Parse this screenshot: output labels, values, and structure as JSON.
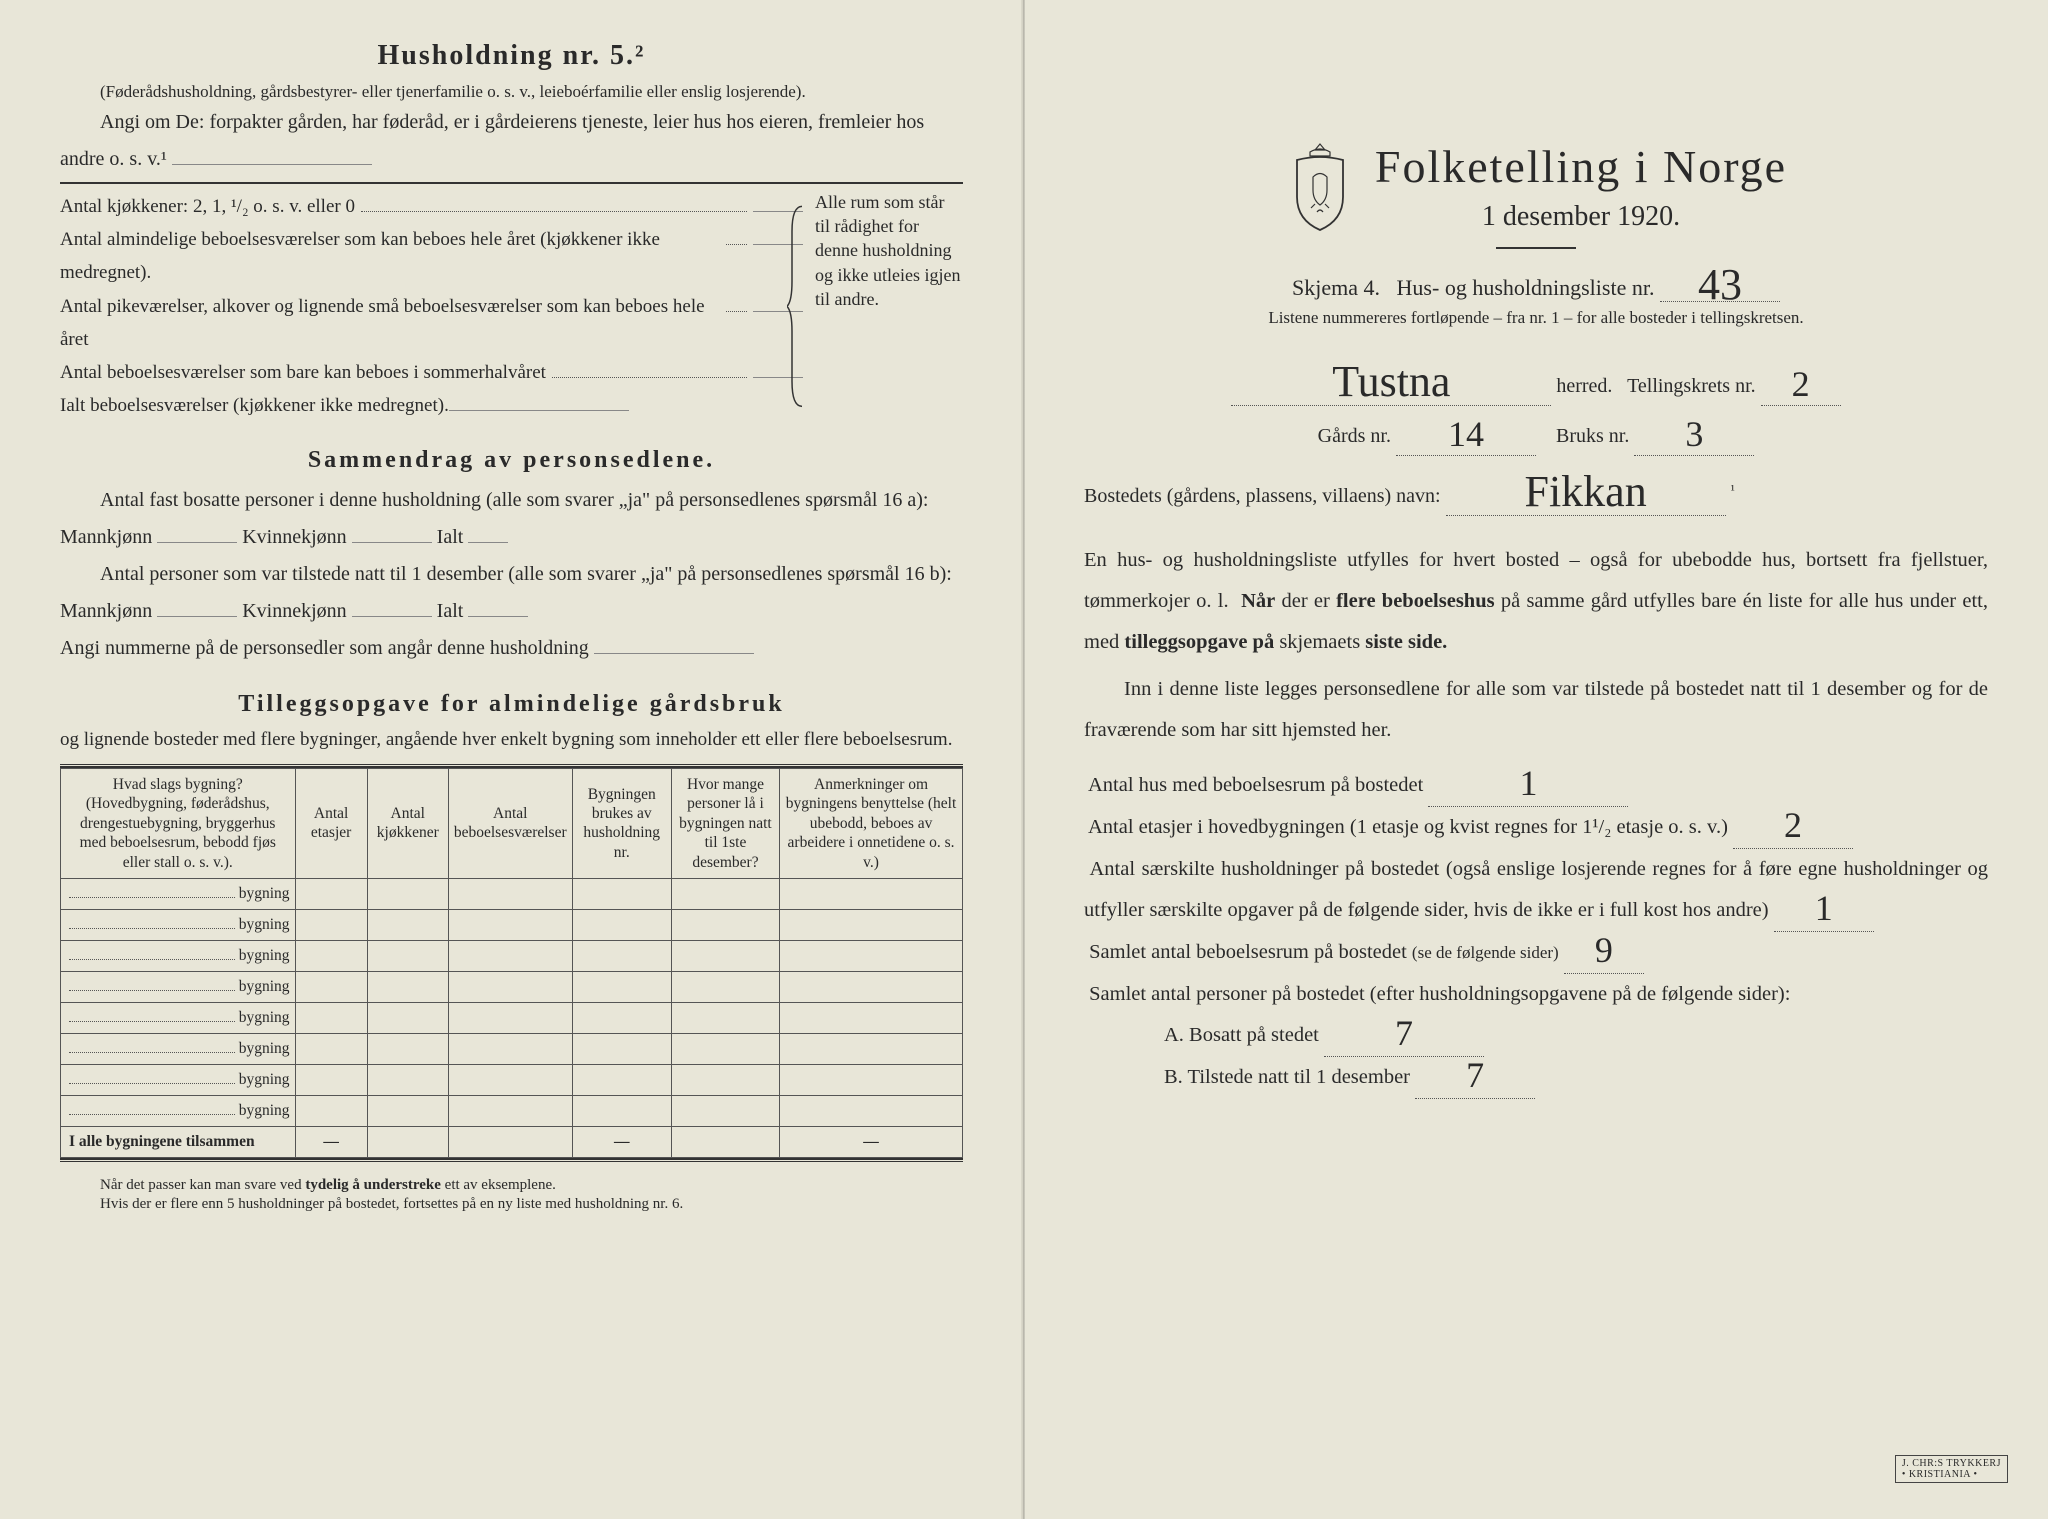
{
  "left": {
    "heading": "Husholdning nr. 5.²",
    "paraA": "(Føderådshusholdning, gårdsbestyrer- eller tjenerfamilie o. s. v., leieboérfamilie eller enslig losjerende).",
    "paraB_lead": "Angi om De:",
    "paraB_rest": "forpakter gården, har føderåd, er i gårdeierens tjeneste, leier hus hos eieren, fremleier hos andre o. s. v.¹",
    "kitchens_label": "Antal kjøkkener: 2, 1, ¹/₂ o. s. v. eller 0",
    "rooms": [
      "Antal almindelige beboelsesværelser som kan beboes hele året (kjøkkener ikke medregnet).",
      "Antal pikeværelser, alkover og lignende små beboelsesværelser som kan beboes hele året",
      "Antal beboelsesværelser som bare kan beboes i sommerhalvåret",
      "Ialt beboelsesværelser (kjøkkener ikke medregnet)."
    ],
    "bracket_text": "Alle rum som står til rådighet for denne husholdning og ikke utleies igjen til andre.",
    "summary_heading": "Sammendrag av personsedlene.",
    "summary_p1a": "Antal fast bosatte personer i denne husholdning (alle som svarer „ja\" på personsedlenes spørsmål 16 a): Mannkjønn",
    "summary_kv": "Kvinnekjønn",
    "summary_ialt": "Ialt",
    "summary_p2a": "Antal personer som var tilstede natt til 1 desember (alle som svarer „ja\" på personsedlenes spørsmål 16 b): Mannkjønn",
    "summary_p3": "Angi nummerne på de personsedler som angår denne husholdning",
    "tillegg_heading": "Tilleggsopgave for almindelige gårdsbruk",
    "tillegg_sub": "og lignende bosteder med flere bygninger, angående hver enkelt bygning som inneholder ett eller flere beboelsesrum.",
    "table": {
      "headers": [
        "Hvad slags bygning?\n(Hovedbygning, føderådshus, drengestuebygning, bryggerhus med beboelsesrum, bebodd fjøs eller stall o. s. v.).",
        "Antal etasjer",
        "Antal kjøkkener",
        "Antal beboelsesværelser",
        "Bygningen brukes av husholdning nr.",
        "Hvor mange personer lå i bygningen natt til 1ste desember?",
        "Anmerkninger om bygningens benyttelse (helt ubebodd, beboes av arbeidere i onnetidene o. s. v.)"
      ],
      "row_label": "bygning",
      "row_count": 8,
      "footer_label": "I alle bygningene tilsammen",
      "footer_cells": [
        "—",
        "",
        "",
        "—",
        "",
        "—"
      ]
    },
    "footnote1": "Når det passer kan man svare ved tydelig å understreke ett av eksemplene.",
    "footnote2": "Hvis der er flere enn 5 husholdninger på bostedet, fortsettes på en ny liste med husholdning nr. 6."
  },
  "right": {
    "title": "Folketelling i Norge",
    "date": "1 desember 1920.",
    "schema_a": "Skjema 4.",
    "schema_b": "Hus- og husholdningsliste nr.",
    "list_nr": "43",
    "subnote": "Listene nummereres fortløpende – fra nr. 1 – for alle bosteder i tellingskretsen.",
    "herred_value": "Tustna",
    "herred_label": "herred.",
    "krets_label": "Tellingskrets nr.",
    "krets_value": "2",
    "gard_label": "Gårds nr.",
    "gard_value": "14",
    "bruk_label": "Bruks nr.",
    "bruk_value": "3",
    "bosted_label": "Bostedets (gårdens, plassens, villaens) navn:",
    "bosted_value": "Fikkan",
    "bosted_suffix": "¹",
    "para1": "En hus- og husholdningsliste utfylles for hvert bosted – også for ubebodde hus, bortsett fra fjellstuer, tømmerkojer o. l.  Når der er flere beboelseshus på samme gård utfylles bare én liste for alle hus under ett, med tilleggsopgave på skjemaets siste side.",
    "para1_bold_a": "Når",
    "para1_bold_b": "flere beboelseshus",
    "para1_bold_c": "tilleggsopgave på",
    "para1_bold_d": "siste side.",
    "para2": "Inn i denne liste legges personsedlene for alle som var tilstede på bostedet natt til 1 desember og for de fraværende som har sitt hjemsted her.",
    "q1_label": "Antal hus med beboelsesrum på bostedet",
    "q1_value": "1",
    "q2_label_a": "Antal etasjer i hovedbygningen (1 etasje og kvist regnes for 1¹/₂ etasje o. s. v.)",
    "q2_value": "2",
    "q3": "Antal særskilte husholdninger på bostedet (også enslige losjerende regnes for å føre egne husholdninger og utfyller særskilte opgaver på de følgende sider, hvis de ikke er i full kost hos andre)",
    "q3_value": "1",
    "q4_label": "Samlet antal beboelsesrum på bostedet (se de følgende sider)",
    "q4_value": "9",
    "q5_label": "Samlet antal personer på bostedet (efter husholdningsopgavene på de følgende sider):",
    "qA_label": "A.  Bosatt på stedet",
    "qA_value": "7",
    "qB_label": "B.  Tilstede natt til 1 desember",
    "qB_value": "7"
  },
  "colors": {
    "paper": "#e8e6d8",
    "ink": "#2a2a2a",
    "rule": "#555555"
  }
}
